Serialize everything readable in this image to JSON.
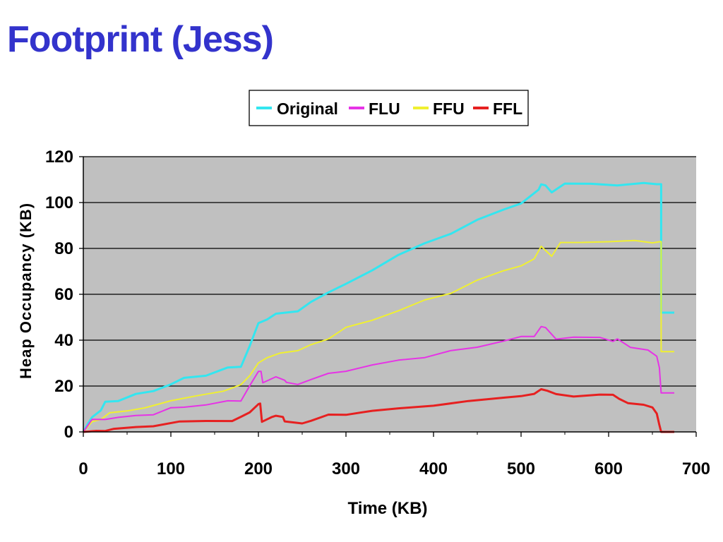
{
  "slide": {
    "title": "Footprint (Jess)"
  },
  "chart_data": {
    "type": "line",
    "title": "",
    "xlabel": "Time (KB)",
    "ylabel": "Heap Occupancy (KB)",
    "xlim": [
      0,
      700
    ],
    "ylim": [
      0,
      120
    ],
    "xticks": [
      0,
      100,
      200,
      300,
      400,
      500,
      600,
      700
    ],
    "yticks": [
      0,
      20,
      40,
      60,
      80,
      100,
      120
    ],
    "grid": "horizontal",
    "plot_background": "#c0c0c0",
    "legend": {
      "placement": "top-center"
    },
    "series": [
      {
        "name": "Original",
        "color": "#33e6f0",
        "points": [
          [
            0,
            0
          ],
          [
            5,
            3
          ],
          [
            10,
            7
          ],
          [
            20,
            9
          ],
          [
            25,
            13
          ],
          [
            40,
            14
          ],
          [
            60,
            16
          ],
          [
            80,
            18
          ],
          [
            100,
            21
          ],
          [
            115,
            23
          ],
          [
            140,
            25
          ],
          [
            165,
            28
          ],
          [
            180,
            28
          ],
          [
            190,
            38
          ],
          [
            200,
            47
          ],
          [
            210,
            49
          ],
          [
            220,
            52
          ],
          [
            245,
            52
          ],
          [
            260,
            57
          ],
          [
            280,
            61
          ],
          [
            300,
            64
          ],
          [
            330,
            71
          ],
          [
            360,
            77
          ],
          [
            390,
            82
          ],
          [
            420,
            87
          ],
          [
            450,
            92
          ],
          [
            480,
            97
          ],
          [
            500,
            100
          ],
          [
            510,
            102
          ],
          [
            520,
            106
          ],
          [
            523,
            108
          ],
          [
            528,
            107
          ],
          [
            535,
            105
          ],
          [
            550,
            108
          ],
          [
            580,
            108
          ],
          [
            610,
            108
          ],
          [
            640,
            108
          ],
          [
            655,
            108
          ],
          [
            660,
            108
          ],
          [
            660,
            52
          ],
          [
            668,
            52
          ],
          [
            675,
            52
          ]
        ]
      },
      {
        "name": "FLU",
        "color": "#e633e6",
        "points": [
          [
            0,
            0
          ],
          [
            10,
            5
          ],
          [
            25,
            6
          ],
          [
            40,
            6
          ],
          [
            60,
            7
          ],
          [
            80,
            8
          ],
          [
            100,
            10
          ],
          [
            115,
            11
          ],
          [
            140,
            12
          ],
          [
            165,
            13
          ],
          [
            180,
            14
          ],
          [
            190,
            20
          ],
          [
            200,
            26
          ],
          [
            203,
            27
          ],
          [
            205,
            21
          ],
          [
            220,
            24
          ],
          [
            230,
            23
          ],
          [
            232,
            21
          ],
          [
            245,
            21
          ],
          [
            260,
            23
          ],
          [
            280,
            25
          ],
          [
            300,
            27
          ],
          [
            330,
            29
          ],
          [
            360,
            31
          ],
          [
            390,
            33
          ],
          [
            420,
            35
          ],
          [
            450,
            37
          ],
          [
            480,
            40
          ],
          [
            500,
            41
          ],
          [
            515,
            42
          ],
          [
            523,
            46
          ],
          [
            528,
            45
          ],
          [
            540,
            41
          ],
          [
            560,
            41
          ],
          [
            590,
            41
          ],
          [
            605,
            40
          ],
          [
            610,
            40
          ],
          [
            625,
            37
          ],
          [
            645,
            36
          ],
          [
            655,
            33
          ],
          [
            658,
            28
          ],
          [
            660,
            17
          ],
          [
            668,
            17
          ],
          [
            675,
            17
          ]
        ]
      },
      {
        "name": "FFU",
        "color": "#f0f030",
        "points": [
          [
            0,
            0
          ],
          [
            10,
            4
          ],
          [
            20,
            6
          ],
          [
            30,
            8
          ],
          [
            50,
            9
          ],
          [
            70,
            11
          ],
          [
            100,
            13
          ],
          [
            130,
            16
          ],
          [
            160,
            18
          ],
          [
            180,
            20
          ],
          [
            190,
            25
          ],
          [
            200,
            30
          ],
          [
            210,
            32
          ],
          [
            225,
            35
          ],
          [
            245,
            35
          ],
          [
            260,
            38
          ],
          [
            280,
            41
          ],
          [
            300,
            45
          ],
          [
            330,
            49
          ],
          [
            360,
            53
          ],
          [
            390,
            57
          ],
          [
            420,
            61
          ],
          [
            450,
            66
          ],
          [
            480,
            70
          ],
          [
            500,
            73
          ],
          [
            515,
            75
          ],
          [
            523,
            81
          ],
          [
            535,
            77
          ],
          [
            545,
            82
          ],
          [
            570,
            83
          ],
          [
            600,
            83
          ],
          [
            630,
            83
          ],
          [
            650,
            83
          ],
          [
            660,
            83
          ],
          [
            660,
            35
          ],
          [
            668,
            35
          ],
          [
            675,
            35
          ]
        ]
      },
      {
        "name": "FFL",
        "color": "#e62020",
        "points": [
          [
            0,
            0
          ],
          [
            15,
            0
          ],
          [
            25,
            1
          ],
          [
            35,
            1
          ],
          [
            60,
            2
          ],
          [
            80,
            3
          ],
          [
            110,
            4
          ],
          [
            140,
            5
          ],
          [
            170,
            5
          ],
          [
            180,
            6
          ],
          [
            190,
            9
          ],
          [
            200,
            12
          ],
          [
            202,
            12
          ],
          [
            204,
            5
          ],
          [
            215,
            6
          ],
          [
            220,
            7
          ],
          [
            228,
            7
          ],
          [
            230,
            4
          ],
          [
            250,
            4
          ],
          [
            260,
            5
          ],
          [
            280,
            7
          ],
          [
            300,
            8
          ],
          [
            330,
            9
          ],
          [
            360,
            10
          ],
          [
            400,
            12
          ],
          [
            440,
            13
          ],
          [
            480,
            15
          ],
          [
            500,
            16
          ],
          [
            515,
            16
          ],
          [
            523,
            19
          ],
          [
            530,
            18
          ],
          [
            540,
            16
          ],
          [
            560,
            16
          ],
          [
            590,
            16
          ],
          [
            605,
            16
          ],
          [
            612,
            15
          ],
          [
            622,
            12
          ],
          [
            640,
            12
          ],
          [
            650,
            11
          ],
          [
            655,
            8
          ],
          [
            658,
            3
          ],
          [
            660,
            0
          ],
          [
            668,
            0
          ],
          [
            675,
            0
          ]
        ]
      }
    ]
  }
}
